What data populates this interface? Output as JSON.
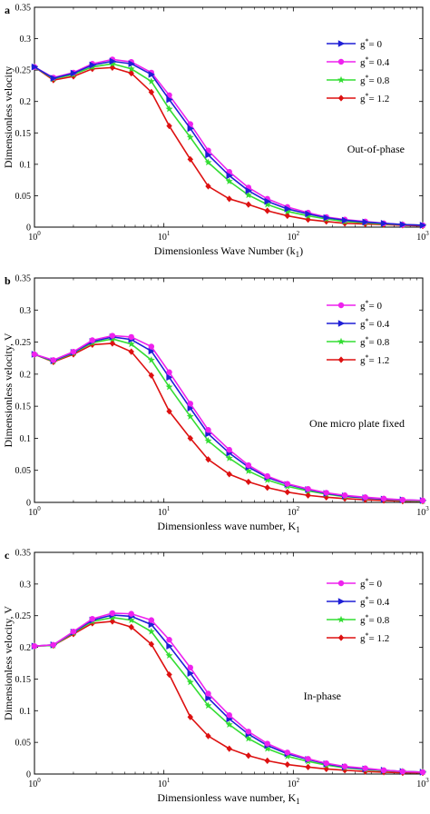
{
  "chart_data": [
    {
      "type": "line",
      "panel_label": "a",
      "xlabel": "Dimensionless Wave Number (k",
      "xlabel_sub": "1",
      "xlabel_tail": ")",
      "ylabel": "Dimensionless velocity",
      "annotation": "Out-of-phase",
      "xscale": "log",
      "xlim": [
        1,
        1000
      ],
      "ylim": [
        0,
        0.35
      ],
      "x_ticks": [
        {
          "base": "10",
          "exp": "0"
        },
        {
          "base": "10",
          "exp": "1"
        },
        {
          "base": "10",
          "exp": "2"
        },
        {
          "base": "10",
          "exp": "3"
        }
      ],
      "y_ticks": [
        "0",
        "0.05",
        "0.1",
        "0.15",
        "0.2",
        "0.25",
        "0.3",
        "0.35"
      ],
      "legend_position": "top-right",
      "x": [
        1,
        1.4,
        2,
        2.8,
        4,
        5.6,
        8,
        11,
        16,
        22,
        32,
        45,
        63,
        90,
        130,
        180,
        250,
        360,
        500,
        700,
        1000
      ],
      "series": [
        {
          "name": "g*= 0",
          "symbol": "g",
          "sup": "*",
          "value_label": "= 0",
          "color": "#1f1fd6",
          "marker": "triangle-right",
          "values": [
            0.255,
            0.237,
            0.245,
            0.258,
            0.264,
            0.26,
            0.243,
            0.203,
            0.157,
            0.115,
            0.082,
            0.058,
            0.041,
            0.029,
            0.021,
            0.015,
            0.011,
            0.008,
            0.006,
            0.004,
            0.003
          ]
        },
        {
          "name": "g*= 0.4",
          "symbol": "g",
          "sup": "*",
          "value_label": "= 0.4",
          "color": "#ee22ee",
          "marker": "circle",
          "values": [
            0.255,
            0.238,
            0.246,
            0.26,
            0.267,
            0.263,
            0.246,
            0.21,
            0.164,
            0.122,
            0.088,
            0.063,
            0.045,
            0.032,
            0.023,
            0.016,
            0.012,
            0.009,
            0.006,
            0.004,
            0.003
          ]
        },
        {
          "name": "g*= 0.8",
          "symbol": "g",
          "sup": "*",
          "value_label": "= 0.8",
          "color": "#33dd33",
          "marker": "star",
          "values": [
            0.255,
            0.236,
            0.243,
            0.255,
            0.26,
            0.252,
            0.232,
            0.188,
            0.143,
            0.103,
            0.073,
            0.051,
            0.036,
            0.025,
            0.018,
            0.013,
            0.009,
            0.007,
            0.005,
            0.004,
            0.003
          ]
        },
        {
          "name": "g*= 1.2",
          "symbol": "g",
          "sup": "*",
          "value_label": "= 1.2",
          "color": "#dd1111",
          "marker": "diamond",
          "values": [
            0.255,
            0.234,
            0.24,
            0.252,
            0.254,
            0.245,
            0.215,
            0.161,
            0.108,
            0.065,
            0.045,
            0.036,
            0.026,
            0.018,
            0.012,
            0.009,
            0.006,
            0.005,
            0.004,
            0.003,
            0.002
          ]
        }
      ]
    },
    {
      "type": "line",
      "panel_label": "b",
      "xlabel": "Dimensionless wave number, K",
      "xlabel_sub": "1",
      "xlabel_tail": "",
      "ylabel": "Dimensionless velocity, V",
      "annotation": "One micro plate fixed",
      "xscale": "log",
      "xlim": [
        1,
        1000
      ],
      "ylim": [
        0,
        0.35
      ],
      "x_ticks": [
        {
          "base": "10",
          "exp": "0"
        },
        {
          "base": "10",
          "exp": "1"
        },
        {
          "base": "10",
          "exp": "2"
        },
        {
          "base": "10",
          "exp": "3"
        }
      ],
      "y_ticks": [
        "0",
        "0.05",
        "0.1",
        "0.15",
        "0.2",
        "0.25",
        "0.3",
        "0.35"
      ],
      "legend_position": "top-right",
      "x": [
        1,
        1.4,
        2,
        2.8,
        4,
        5.6,
        8,
        11,
        16,
        22,
        32,
        45,
        63,
        90,
        130,
        180,
        250,
        360,
        500,
        700,
        1000
      ],
      "series": [
        {
          "name": "g*= 0",
          "symbol": "g",
          "sup": "*",
          "value_label": "= 0",
          "color": "#ee22ee",
          "marker": "circle",
          "values": [
            0.231,
            0.222,
            0.235,
            0.253,
            0.26,
            0.258,
            0.243,
            0.203,
            0.154,
            0.113,
            0.082,
            0.058,
            0.041,
            0.029,
            0.021,
            0.015,
            0.011,
            0.008,
            0.006,
            0.004,
            0.003
          ]
        },
        {
          "name": "g*= 0.4",
          "symbol": "g",
          "sup": "*",
          "value_label": "= 0.4",
          "color": "#1f1fd6",
          "marker": "triangle-right",
          "values": [
            0.231,
            0.221,
            0.234,
            0.251,
            0.258,
            0.254,
            0.236,
            0.195,
            0.147,
            0.107,
            0.077,
            0.055,
            0.039,
            0.028,
            0.02,
            0.014,
            0.01,
            0.007,
            0.005,
            0.004,
            0.003
          ]
        },
        {
          "name": "g*= 0.8",
          "symbol": "g",
          "sup": "*",
          "value_label": "= 0.8",
          "color": "#33dd33",
          "marker": "star",
          "values": [
            0.231,
            0.22,
            0.233,
            0.249,
            0.255,
            0.247,
            0.222,
            0.18,
            0.134,
            0.096,
            0.069,
            0.049,
            0.035,
            0.025,
            0.018,
            0.013,
            0.009,
            0.007,
            0.005,
            0.003,
            0.002
          ]
        },
        {
          "name": "g*= 1.2",
          "symbol": "g",
          "sup": "*",
          "value_label": "= 1.2",
          "color": "#dd1111",
          "marker": "diamond",
          "values": [
            0.231,
            0.219,
            0.231,
            0.246,
            0.248,
            0.235,
            0.198,
            0.142,
            0.1,
            0.067,
            0.044,
            0.032,
            0.023,
            0.016,
            0.011,
            0.008,
            0.006,
            0.004,
            0.003,
            0.002,
            0.002
          ]
        }
      ]
    },
    {
      "type": "line",
      "panel_label": "c",
      "xlabel": "Dimensionless wave number, K",
      "xlabel_sub": "1",
      "xlabel_tail": "",
      "ylabel": "Dimensionless velocity, V",
      "annotation": "In-phase",
      "xscale": "log",
      "xlim": [
        1,
        1000
      ],
      "ylim": [
        0,
        0.35
      ],
      "x_ticks": [
        {
          "base": "10",
          "exp": "0"
        },
        {
          "base": "10",
          "exp": "1"
        },
        {
          "base": "10",
          "exp": "2"
        },
        {
          "base": "10",
          "exp": "3"
        }
      ],
      "y_ticks": [
        "0",
        "0.05",
        "0.1",
        "0.15",
        "0.2",
        "0.25",
        "0.3",
        "0.35"
      ],
      "legend_position": "top-right",
      "x": [
        1,
        1.4,
        2,
        2.8,
        4,
        5.6,
        8,
        11,
        16,
        22,
        32,
        45,
        63,
        90,
        130,
        180,
        250,
        360,
        500,
        700,
        1000
      ],
      "series": [
        {
          "name": "g*= 0",
          "symbol": "g",
          "sup": "*",
          "value_label": "= 0",
          "color": "#ee22ee",
          "marker": "circle",
          "values": [
            0.202,
            0.204,
            0.225,
            0.245,
            0.254,
            0.253,
            0.243,
            0.212,
            0.168,
            0.127,
            0.093,
            0.067,
            0.048,
            0.034,
            0.024,
            0.017,
            0.012,
            0.009,
            0.006,
            0.004,
            0.003
          ]
        },
        {
          "name": "g*= 0.4",
          "symbol": "g",
          "sup": "*",
          "value_label": "= 0.4",
          "color": "#1f1fd6",
          "marker": "triangle-right",
          "values": [
            0.202,
            0.204,
            0.224,
            0.243,
            0.251,
            0.249,
            0.236,
            0.202,
            0.159,
            0.12,
            0.087,
            0.063,
            0.045,
            0.032,
            0.023,
            0.016,
            0.011,
            0.008,
            0.006,
            0.004,
            0.003
          ]
        },
        {
          "name": "g*= 0.8",
          "symbol": "g",
          "sup": "*",
          "value_label": "= 0.8",
          "color": "#33dd33",
          "marker": "star",
          "values": [
            0.202,
            0.203,
            0.223,
            0.241,
            0.247,
            0.243,
            0.225,
            0.187,
            0.145,
            0.108,
            0.078,
            0.056,
            0.04,
            0.028,
            0.02,
            0.014,
            0.01,
            0.007,
            0.005,
            0.004,
            0.003
          ]
        },
        {
          "name": "g*= 1.2",
          "symbol": "g",
          "sup": "*",
          "value_label": "= 1.2",
          "color": "#dd1111",
          "marker": "diamond",
          "values": [
            0.202,
            0.203,
            0.221,
            0.238,
            0.241,
            0.232,
            0.205,
            0.157,
            0.09,
            0.06,
            0.04,
            0.029,
            0.021,
            0.015,
            0.011,
            0.008,
            0.006,
            0.004,
            0.003,
            0.002,
            0.002
          ]
        }
      ]
    }
  ]
}
